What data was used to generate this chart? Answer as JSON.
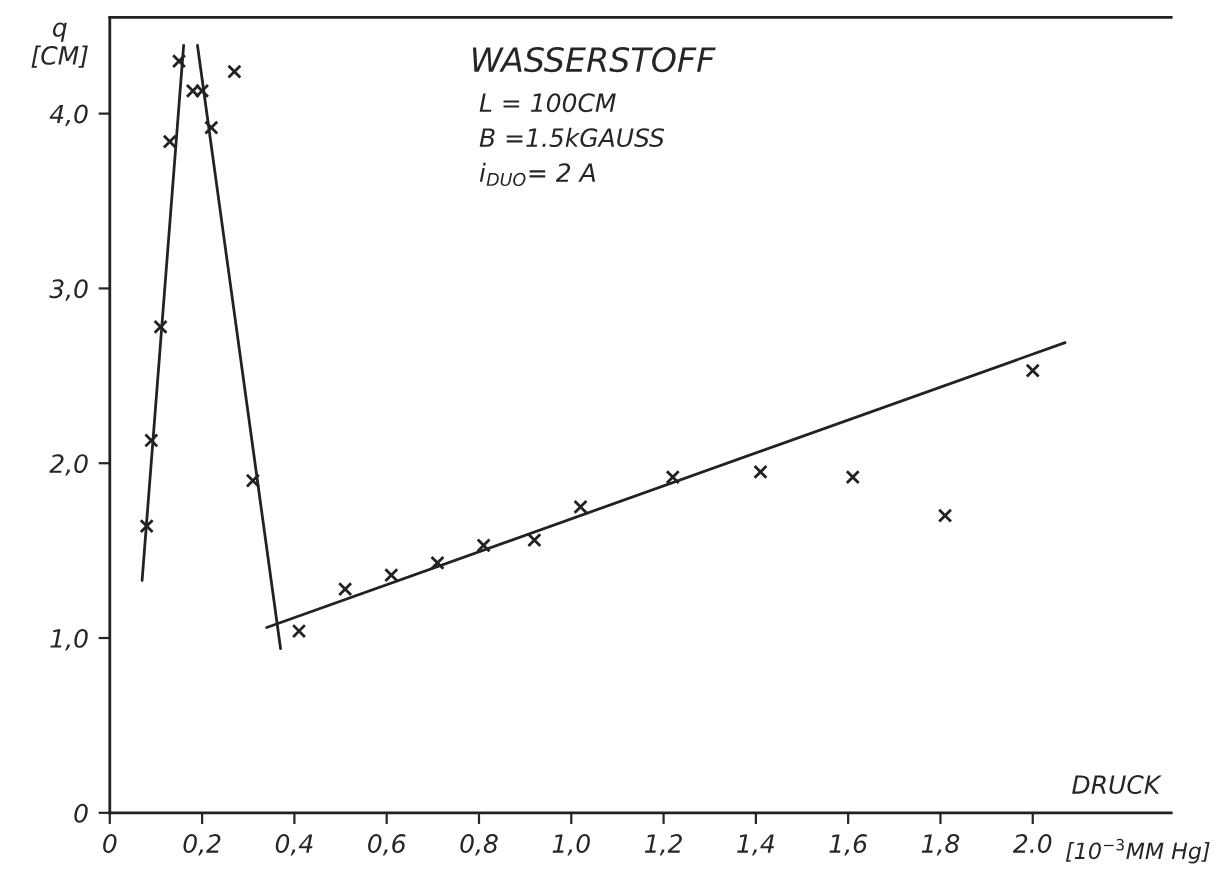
{
  "chart_data": {
    "type": "scatter",
    "title": "WASSERSTOFF",
    "xlabel": "DRUCK",
    "ylabel": "q\n[CM]",
    "annotations": [
      "L = 100CM",
      "B =1.5kGAUSS",
      "i$_{DUO}$= 2 A",
      "[10$^{−3}$MM Hg]"
    ],
    "series": [
      {
        "color": "#222222",
        "marker": "cross",
        "x": [
          0.08,
          0.09,
          0.11,
          0.13,
          0.15,
          0.18,
          0.2,
          0.22,
          0.27,
          0.31,
          0.41,
          0.51,
          0.61,
          0.71,
          0.81,
          0.92,
          1.02,
          1.22,
          1.41,
          1.61,
          1.81,
          2.0
        ],
        "values": [
          1.64,
          2.13,
          2.78,
          3.84,
          4.3,
          4.13,
          4.13,
          3.92,
          4.24,
          1.9,
          1.04,
          1.28,
          1.36,
          1.43,
          1.53,
          1.56,
          1.75,
          1.92,
          1.95,
          1.92,
          1.7,
          2.53
        ]
      },
      {
        "type": "line",
        "color": "#222222",
        "line_style": "solid",
        "x": [
          0.07,
          0.16
        ],
        "values": [
          1.33,
          4.39
        ]
      },
      {
        "type": "line",
        "color": "#222222",
        "line_style": "solid",
        "x": [
          0.19,
          0.37
        ],
        "values": [
          4.39,
          0.94
        ]
      },
      {
        "type": "line",
        "color": "#222222",
        "line_style": "solid",
        "x": [
          0.34,
          2.07
        ],
        "values": [
          1.06,
          2.69
        ]
      }
    ],
    "xlim": [
      0,
      2.3
    ],
    "ylim": [
      0,
      4.55
    ],
    "xticks": [
      0,
      {
        "value": 0.2,
        "label": "0,2"
      },
      {
        "value": 0.4,
        "label": "0,4"
      },
      {
        "value": 0.6,
        "label": "0,6"
      },
      {
        "value": 0.8,
        "label": "0,8"
      },
      {
        "value": 1.0,
        "label": "1,0"
      },
      {
        "value": 1.2,
        "label": "1,2"
      },
      {
        "value": 1.4,
        "label": "1,4"
      },
      {
        "value": 1.6,
        "label": "1,6"
      },
      {
        "value": 1.8,
        "label": "1,8"
      },
      {
        "value": 2.0,
        "label": "2.0"
      }
    ],
    "yticks": [
      0,
      {
        "value": 1.0,
        "label": "1,0"
      },
      {
        "value": 2.0,
        "label": "2,0"
      },
      {
        "value": 3.0,
        "label": "3,0"
      },
      {
        "value": 4.0,
        "label": "4,0"
      }
    ],
    "grid": false,
    "legend": false
  }
}
